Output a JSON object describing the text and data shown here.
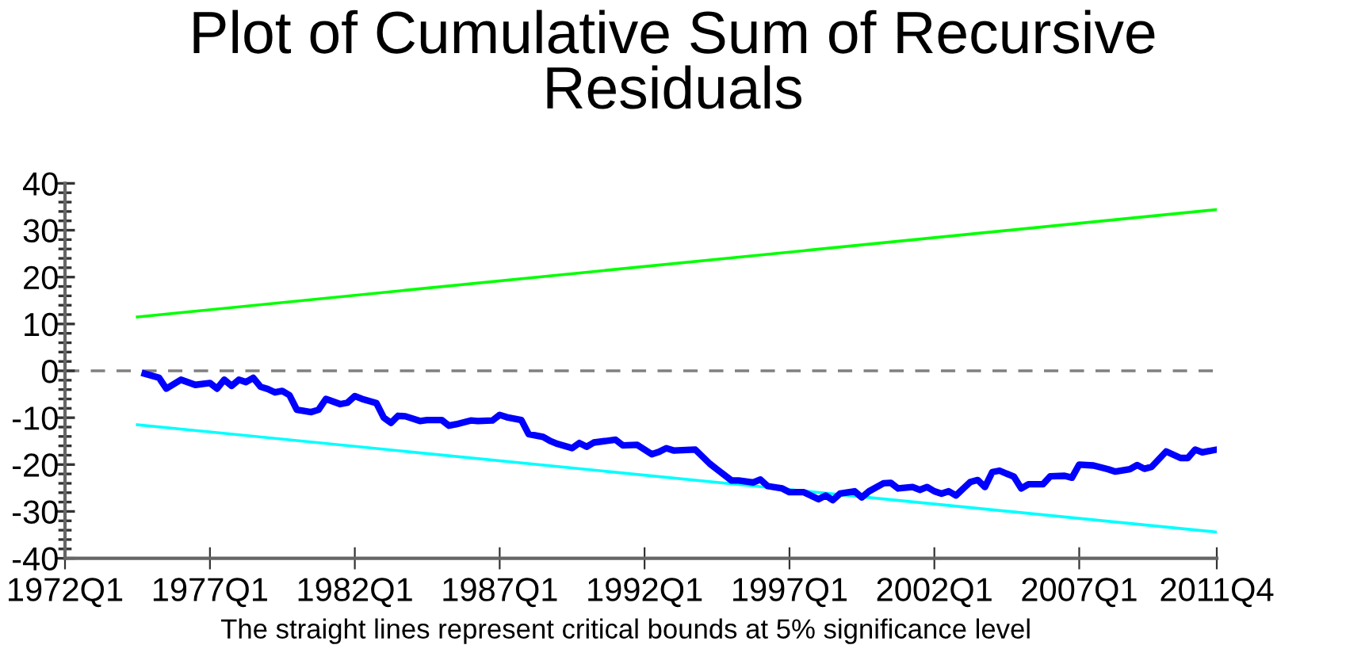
{
  "chart_data": {
    "type": "line",
    "title": "Plot of Cumulative Sum of Recursive\nResiduals",
    "annotations": [
      "The straight lines represent critical bounds at 5% significance level"
    ],
    "series": [
      {
        "color": "#0000ff",
        "x": [
          "1974-10",
          "1975-04",
          "1975-07",
          "1976-01",
          "1976-07",
          "1977-01",
          "1977-04",
          "1977-07",
          "1977-10",
          "1978-01",
          "1978-04",
          "1978-07",
          "1978-10",
          "1979-01",
          "1979-04",
          "1979-07",
          "1979-10",
          "1980-01",
          "1980-07",
          "1980-10",
          "1981-01",
          "1981-07",
          "1981-10",
          "1982-01",
          "1982-04",
          "1982-10",
          "1983-01",
          "1983-04",
          "1983-07",
          "1983-10",
          "1984-04",
          "1984-07",
          "1985-01",
          "1985-04",
          "1985-07",
          "1986-01",
          "1986-04",
          "1986-10",
          "1987-01",
          "1987-04",
          "1987-10",
          "1988-01",
          "1988-07",
          "1988-10",
          "1989-01",
          "1989-07",
          "1989-10",
          "1990-01",
          "1990-04",
          "1991-01",
          "1991-04",
          "1991-10",
          "1992-04",
          "1992-07",
          "1992-10",
          "1993-01",
          "1993-10",
          "1994-04",
          "1994-07",
          "1995-01",
          "1995-04",
          "1995-10",
          "1996-01",
          "1996-04",
          "1996-10",
          "1997-01",
          "1997-07",
          "1998-01",
          "1998-04",
          "1998-07",
          "1998-10",
          "1999-04",
          "1999-07",
          "1999-10",
          "2000-04",
          "2000-07",
          "2000-10",
          "2001-04",
          "2001-07",
          "2001-10",
          "2002-01",
          "2002-04",
          "2002-07",
          "2002-10",
          "2003-01",
          "2003-04",
          "2003-07",
          "2003-10",
          "2004-01",
          "2004-04",
          "2004-10",
          "2005-01",
          "2005-04",
          "2005-10",
          "2006-01",
          "2006-07",
          "2006-10",
          "2007-01",
          "2007-07",
          "2008-01",
          "2008-04",
          "2008-10",
          "2009-01",
          "2009-04",
          "2009-07",
          "2010-01",
          "2010-07",
          "2010-10",
          "2011-01",
          "2011-04",
          "2011-10"
        ],
        "values": [
          -0.6,
          -1.5,
          -3.8,
          -1.9,
          -3.0,
          -2.6,
          -3.8,
          -1.9,
          -3.2,
          -1.9,
          -2.4,
          -1.5,
          -3.4,
          -3.9,
          -4.6,
          -4.3,
          -5.2,
          -8.3,
          -8.8,
          -8.3,
          -6.0,
          -7.1,
          -6.8,
          -5.4,
          -6.0,
          -6.9,
          -10.0,
          -11.1,
          -9.6,
          -9.7,
          -10.7,
          -10.5,
          -10.5,
          -11.7,
          -11.4,
          -10.6,
          -10.7,
          -10.6,
          -9.4,
          -9.9,
          -10.5,
          -13.5,
          -14.1,
          -15.0,
          -15.6,
          -16.5,
          -15.4,
          -16.2,
          -15.3,
          -14.7,
          -15.9,
          -15.8,
          -17.8,
          -17.3,
          -16.5,
          -17.0,
          -16.8,
          -19.8,
          -21.0,
          -23.4,
          -23.4,
          -23.8,
          -23.2,
          -24.6,
          -25.1,
          -25.9,
          -25.9,
          -27.4,
          -26.6,
          -27.6,
          -26.2,
          -25.7,
          -27.0,
          -25.7,
          -24.0,
          -23.9,
          -25.1,
          -24.8,
          -25.4,
          -24.8,
          -25.7,
          -26.2,
          -25.7,
          -26.6,
          -25.1,
          -23.7,
          -23.3,
          -24.8,
          -21.6,
          -21.3,
          -22.6,
          -25.1,
          -24.2,
          -24.2,
          -22.5,
          -22.4,
          -22.8,
          -20.0,
          -20.2,
          -21.0,
          -21.5,
          -21.0,
          -20.1,
          -20.9,
          -20.5,
          -17.2,
          -18.6,
          -18.6,
          -16.8,
          -17.4,
          -16.8
        ]
      },
      {
        "color": "#00ff00",
        "x": [
          "1974-07",
          "2011-10"
        ],
        "values": [
          11.5,
          34.4
        ]
      },
      {
        "color": "#00ffff",
        "x": [
          "1974-07",
          "2011-10"
        ],
        "values": [
          -11.5,
          -34.4
        ]
      }
    ],
    "xlim": [
      "1972-01",
      "2011-10"
    ],
    "xticks": [
      {
        "value": "1972-01",
        "label": "1972Q1"
      },
      {
        "value": "1977-01",
        "label": "1977Q1"
      },
      {
        "value": "1982-01",
        "label": "1982Q1"
      },
      {
        "value": "1987-01",
        "label": "1987Q1"
      },
      {
        "value": "1992-01",
        "label": "1992Q1"
      },
      {
        "value": "1997-01",
        "label": "1997Q1"
      },
      {
        "value": "2002-01",
        "label": "2002Q1"
      },
      {
        "value": "2007-01",
        "label": "2007Q1"
      },
      {
        "value": "2011-10",
        "label": "2011Q4"
      }
    ],
    "ylim": [
      -40,
      40
    ],
    "yticks": [
      -40,
      {
        "value": -38,
        "label": null
      },
      {
        "value": -36,
        "label": null
      },
      {
        "value": -34,
        "label": null
      },
      {
        "value": -32,
        "label": null
      },
      -30,
      {
        "value": -28,
        "label": null
      },
      {
        "value": -26,
        "label": null
      },
      {
        "value": -24,
        "label": null
      },
      {
        "value": -22,
        "label": null
      },
      -20,
      {
        "value": -18,
        "label": null
      },
      {
        "value": -16,
        "label": null
      },
      {
        "value": -14,
        "label": null
      },
      {
        "value": -12,
        "label": null
      },
      -10,
      {
        "value": -8,
        "label": null
      },
      {
        "value": -6,
        "label": null
      },
      {
        "value": -4,
        "label": null
      },
      {
        "value": -2,
        "label": null
      },
      0,
      {
        "value": 2,
        "label": null
      },
      {
        "value": 4,
        "label": null
      },
      {
        "value": 6,
        "label": null
      },
      {
        "value": 8,
        "label": null
      },
      10,
      {
        "value": 12,
        "label": null
      },
      {
        "value": 14,
        "label": null
      },
      {
        "value": 16,
        "label": null
      },
      {
        "value": 18,
        "label": null
      },
      20,
      {
        "value": 22,
        "label": null
      },
      {
        "value": 24,
        "label": null
      },
      {
        "value": 26,
        "label": null
      },
      {
        "value": 28,
        "label": null
      },
      30,
      {
        "value": 32,
        "label": null
      },
      {
        "value": 34,
        "label": null
      },
      {
        "value": 36,
        "label": null
      },
      {
        "value": 38,
        "label": null
      },
      40
    ],
    "ref_lines": [
      {
        "axis": "y",
        "value": 0,
        "color": "#808080",
        "line_style": "dashed"
      }
    ],
    "grid": false,
    "legend": false,
    "marker": "none",
    "line_style": "solid"
  }
}
